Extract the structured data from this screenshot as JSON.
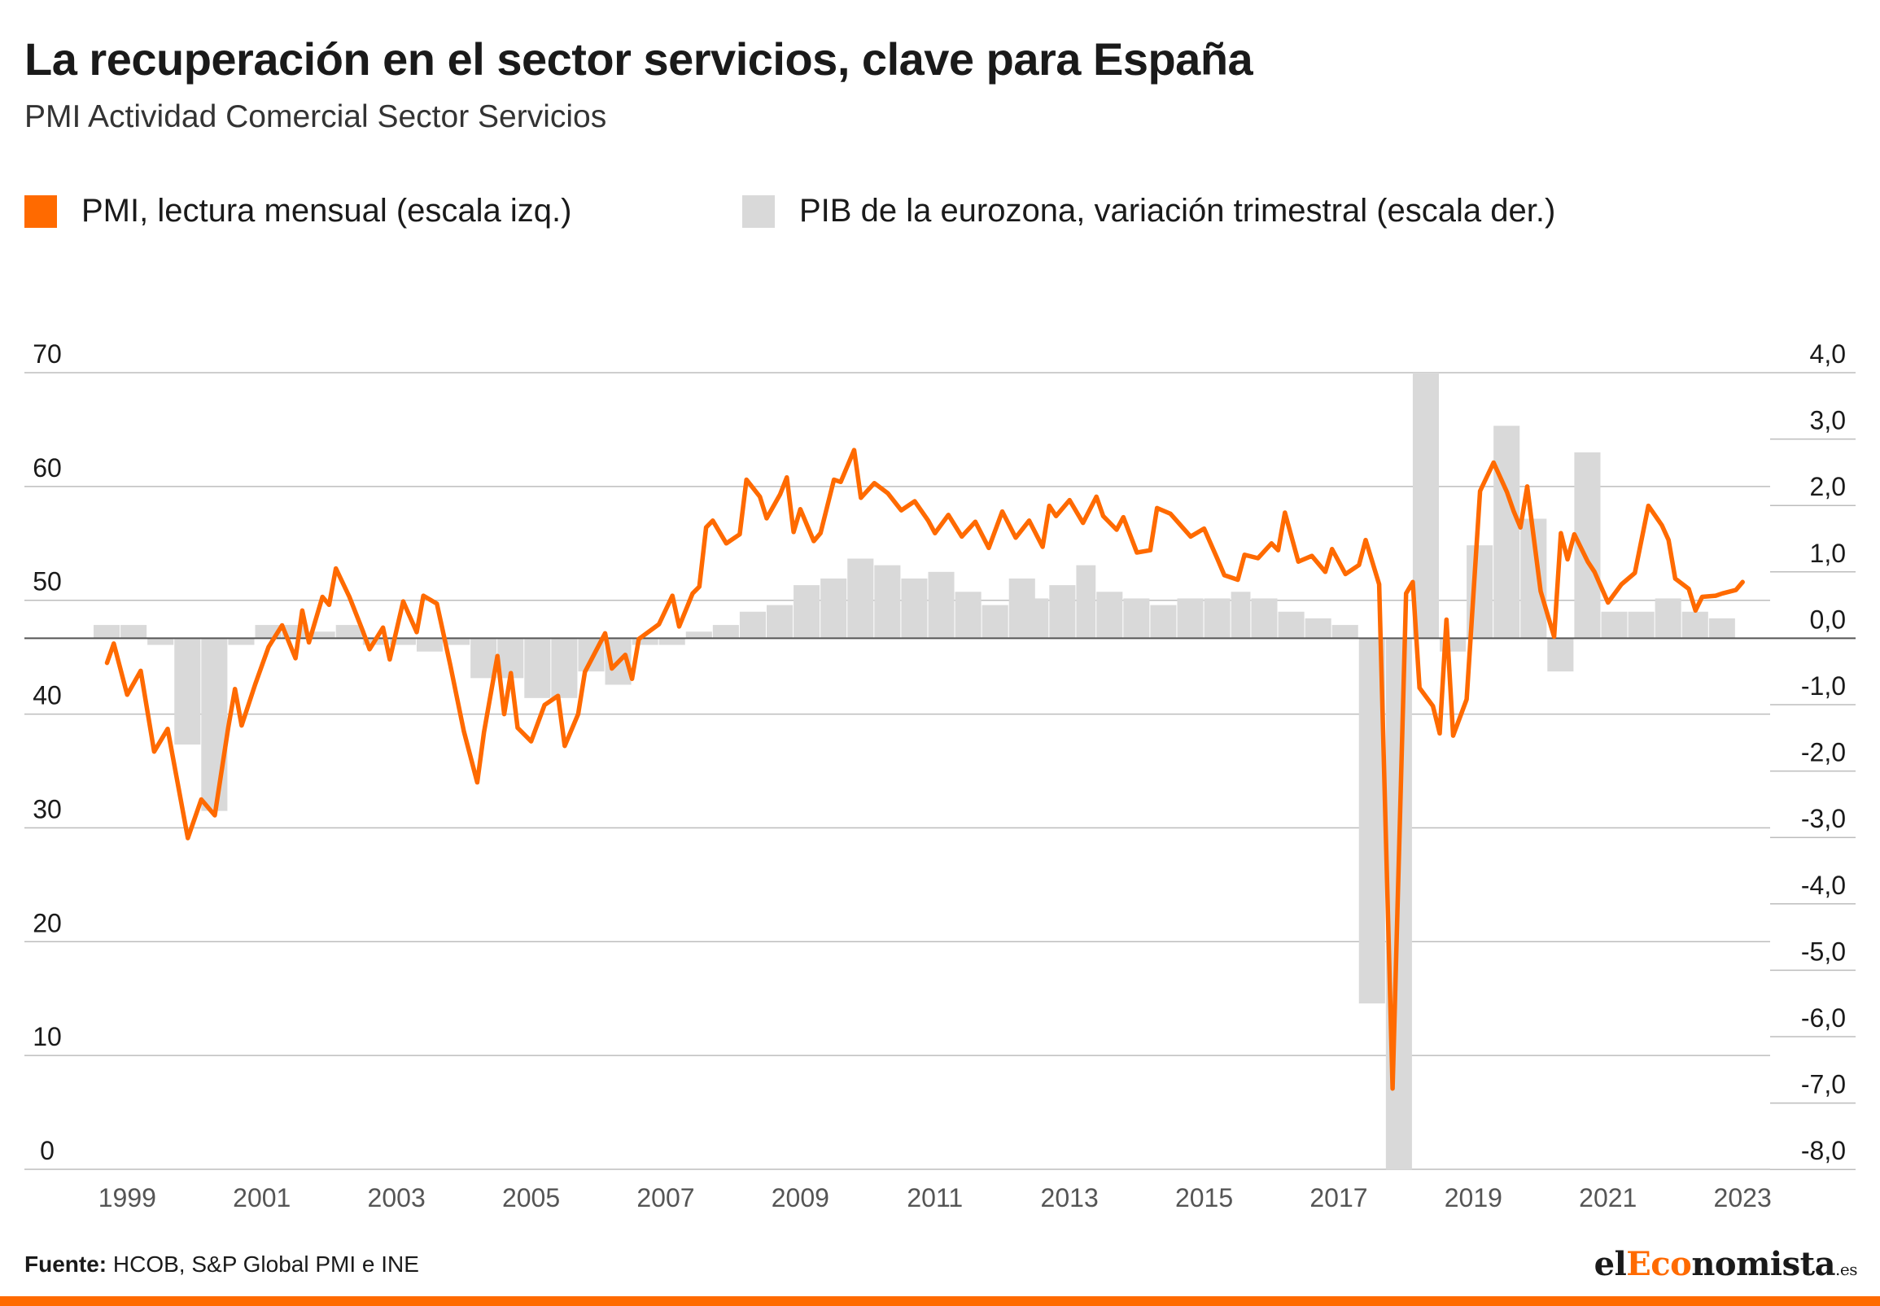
{
  "title": "La recuperación en el sector servicios, clave para España",
  "subtitle": "PMI Actividad Comercial Sector Servicios",
  "legend": [
    {
      "label": "PMI, lectura mensual (escala izq.)",
      "color": "#ff6a00"
    },
    {
      "label": "PIB de la eurozona, variación trimestral (escala der.)",
      "color": "#d9d9d9"
    }
  ],
  "source": {
    "prefix": "Fuente:",
    "text": " HCOB, S&P Global PMI e INE"
  },
  "brand": {
    "part1": "el",
    "part2": "Eco",
    "part3": "nomista",
    "tld": ".es"
  },
  "colors": {
    "pmi": "#ff6a00",
    "gdp": "#d9d9d9",
    "grid": "#bdbdbd",
    "zero": "#555555",
    "accent": "#ff6a00"
  },
  "chart_data": {
    "type": "line",
    "x_tick_labels": [
      "1999",
      "2001",
      "2003",
      "2005",
      "2007",
      "2009",
      "2011",
      "2013",
      "2015",
      "2017",
      "2019",
      "2021",
      "2023"
    ],
    "x_range": [
      1998.0,
      2023.5
    ],
    "y_left": {
      "ticks": [
        "70",
        "60",
        "50",
        "40",
        "30",
        "20",
        "10",
        "0"
      ],
      "range": [
        0,
        70
      ]
    },
    "y_right": {
      "ticks": [
        "4,0",
        "3,0",
        "2,0",
        "1,0",
        "0,0",
        "-1,0",
        "-2,0",
        "-3,0",
        "-4,0",
        "-5,0",
        "-6,0",
        "-7,0",
        "-8,0"
      ],
      "range": [
        -8,
        4
      ]
    },
    "grid": true,
    "legend_position": "top-left",
    "series": [
      {
        "name": "PMI, lectura mensual (escala izq.)",
        "axis": "left",
        "type": "line",
        "points": [
          [
            1998.2,
            44.5
          ],
          [
            1998.3,
            46.2
          ],
          [
            1998.5,
            41.7
          ],
          [
            1998.7,
            43.8
          ],
          [
            1998.9,
            36.7
          ],
          [
            1999.1,
            38.7
          ],
          [
            1999.4,
            29.1
          ],
          [
            1999.6,
            32.5
          ],
          [
            1999.8,
            31.1
          ],
          [
            2000.0,
            38.8
          ],
          [
            2000.1,
            42.2
          ],
          [
            2000.2,
            39.0
          ],
          [
            2000.4,
            42.6
          ],
          [
            2000.6,
            45.9
          ],
          [
            2000.8,
            47.8
          ],
          [
            2001.0,
            44.9
          ],
          [
            2001.1,
            49.1
          ],
          [
            2001.2,
            46.3
          ],
          [
            2001.4,
            50.3
          ],
          [
            2001.5,
            49.6
          ],
          [
            2001.6,
            52.8
          ],
          [
            2001.8,
            50.3
          ],
          [
            2002.0,
            47.3
          ],
          [
            2002.1,
            45.7
          ],
          [
            2002.3,
            47.6
          ],
          [
            2002.4,
            44.8
          ],
          [
            2002.6,
            49.9
          ],
          [
            2002.8,
            47.2
          ],
          [
            2002.9,
            50.4
          ],
          [
            2003.1,
            49.7
          ],
          [
            2003.3,
            44.3
          ],
          [
            2003.5,
            38.5
          ],
          [
            2003.7,
            34.0
          ],
          [
            2003.8,
            38.4
          ],
          [
            2004.0,
            45.1
          ],
          [
            2004.1,
            40.0
          ],
          [
            2004.2,
            43.6
          ],
          [
            2004.3,
            38.8
          ],
          [
            2004.5,
            37.6
          ],
          [
            2004.7,
            40.8
          ],
          [
            2004.9,
            41.6
          ],
          [
            2005.0,
            37.2
          ],
          [
            2005.2,
            40.0
          ],
          [
            2005.3,
            43.7
          ],
          [
            2005.6,
            47.1
          ],
          [
            2005.7,
            44.0
          ],
          [
            2005.9,
            45.2
          ],
          [
            2006.0,
            43.1
          ],
          [
            2006.1,
            46.6
          ],
          [
            2006.4,
            47.9
          ],
          [
            2006.6,
            50.4
          ],
          [
            2006.7,
            47.7
          ],
          [
            2006.9,
            50.6
          ],
          [
            2007.0,
            51.2
          ],
          [
            2007.1,
            56.4
          ],
          [
            2007.2,
            57.0
          ],
          [
            2007.4,
            55.0
          ],
          [
            2007.6,
            55.8
          ],
          [
            2007.7,
            60.6
          ],
          [
            2007.9,
            59.1
          ],
          [
            2008.0,
            57.2
          ],
          [
            2008.2,
            59.3
          ],
          [
            2008.3,
            60.8
          ],
          [
            2008.4,
            56.0
          ],
          [
            2008.5,
            58.0
          ],
          [
            2008.7,
            55.2
          ],
          [
            2008.8,
            55.9
          ],
          [
            2009.0,
            60.6
          ],
          [
            2009.1,
            60.4
          ],
          [
            2009.3,
            63.2
          ],
          [
            2009.4,
            59.0
          ],
          [
            2009.6,
            60.3
          ],
          [
            2009.8,
            59.4
          ],
          [
            2010.0,
            57.9
          ],
          [
            2010.2,
            58.7
          ],
          [
            2010.4,
            57.0
          ],
          [
            2010.5,
            55.9
          ],
          [
            2010.7,
            57.5
          ],
          [
            2010.9,
            55.6
          ],
          [
            2011.1,
            56.9
          ],
          [
            2011.3,
            54.6
          ],
          [
            2011.5,
            57.8
          ],
          [
            2011.7,
            55.5
          ],
          [
            2011.9,
            57.0
          ],
          [
            2012.1,
            54.7
          ],
          [
            2012.2,
            58.3
          ],
          [
            2012.3,
            57.4
          ],
          [
            2012.5,
            58.8
          ],
          [
            2012.7,
            56.8
          ],
          [
            2012.9,
            59.1
          ],
          [
            2013.0,
            57.4
          ],
          [
            2013.2,
            56.2
          ],
          [
            2013.3,
            57.3
          ],
          [
            2013.5,
            54.2
          ],
          [
            2013.7,
            54.4
          ],
          [
            2013.8,
            58.1
          ],
          [
            2014.0,
            57.6
          ],
          [
            2014.3,
            55.6
          ],
          [
            2014.5,
            56.3
          ],
          [
            2014.7,
            53.6
          ],
          [
            2014.8,
            52.2
          ],
          [
            2015.0,
            51.8
          ],
          [
            2015.1,
            54.0
          ],
          [
            2015.3,
            53.7
          ],
          [
            2015.5,
            55.0
          ],
          [
            2015.6,
            54.4
          ],
          [
            2015.7,
            57.7
          ],
          [
            2015.9,
            53.4
          ],
          [
            2016.1,
            53.9
          ],
          [
            2016.3,
            52.5
          ],
          [
            2016.4,
            54.5
          ],
          [
            2016.6,
            52.3
          ],
          [
            2016.8,
            53.1
          ],
          [
            2016.9,
            55.3
          ],
          [
            2017.1,
            51.4
          ],
          [
            2017.3,
            7.1
          ],
          [
            2017.5,
            50.6
          ],
          [
            2017.6,
            51.6
          ],
          [
            2017.7,
            42.3
          ],
          [
            2017.9,
            40.7
          ],
          [
            2018.0,
            38.3
          ],
          [
            2018.1,
            48.3
          ],
          [
            2018.2,
            38.1
          ],
          [
            2018.4,
            41.3
          ],
          [
            2018.6,
            59.6
          ],
          [
            2018.8,
            62.1
          ],
          [
            2019.0,
            59.5
          ],
          [
            2019.1,
            57.8
          ],
          [
            2019.2,
            56.4
          ],
          [
            2019.3,
            60.0
          ],
          [
            2019.5,
            50.8
          ],
          [
            2019.7,
            46.8
          ],
          [
            2019.8,
            55.9
          ],
          [
            2019.9,
            53.6
          ],
          [
            2020.0,
            55.8
          ],
          [
            2020.2,
            53.4
          ],
          [
            2020.3,
            52.5
          ],
          [
            2020.5,
            49.8
          ],
          [
            2020.7,
            51.4
          ],
          [
            2020.9,
            52.4
          ],
          [
            2021.1,
            58.3
          ],
          [
            2021.3,
            56.6
          ],
          [
            2021.4,
            55.3
          ],
          [
            2021.5,
            51.9
          ],
          [
            2021.7,
            51.0
          ],
          [
            2021.8,
            49.1
          ],
          [
            2021.9,
            50.3
          ],
          [
            2022.1,
            50.4
          ],
          [
            2022.2,
            50.6
          ],
          [
            2022.4,
            50.9
          ],
          [
            2022.5,
            51.6
          ]
        ]
      },
      {
        "name": "PIB de la eurozona, variación trimestral (escala der.)",
        "axis": "right",
        "type": "bar",
        "bars": [
          [
            1998.0,
            1998.4,
            0.2
          ],
          [
            1998.4,
            1998.8,
            0.2
          ],
          [
            1998.8,
            1999.2,
            -0.1
          ],
          [
            1999.2,
            1999.6,
            -1.6
          ],
          [
            1999.6,
            2000.0,
            -2.6
          ],
          [
            2000.0,
            2000.4,
            -0.1
          ],
          [
            2000.4,
            2000.8,
            0.2
          ],
          [
            2000.8,
            2001.2,
            0.2
          ],
          [
            2001.2,
            2001.6,
            0.1
          ],
          [
            2001.6,
            2002.0,
            0.2
          ],
          [
            2002.0,
            2002.4,
            -0.1
          ],
          [
            2002.4,
            2002.8,
            -0.1
          ],
          [
            2002.8,
            2003.2,
            -0.2
          ],
          [
            2003.2,
            2003.6,
            -0.1
          ],
          [
            2003.6,
            2004.0,
            -0.6
          ],
          [
            2004.0,
            2004.4,
            -0.6
          ],
          [
            2004.4,
            2004.8,
            -0.9
          ],
          [
            2004.8,
            2005.2,
            -0.9
          ],
          [
            2005.2,
            2005.6,
            -0.5
          ],
          [
            2005.6,
            2006.0,
            -0.7
          ],
          [
            2006.0,
            2006.4,
            -0.1
          ],
          [
            2006.4,
            2006.8,
            -0.1
          ],
          [
            2006.8,
            2007.2,
            0.1
          ],
          [
            2007.2,
            2007.6,
            0.2
          ],
          [
            2007.6,
            2008.0,
            0.4
          ],
          [
            2008.0,
            2008.4,
            0.5
          ],
          [
            2008.4,
            2008.8,
            0.8
          ],
          [
            2008.8,
            2009.2,
            0.9
          ],
          [
            2009.2,
            2009.6,
            1.2
          ],
          [
            2009.6,
            2010.0,
            1.1
          ],
          [
            2010.0,
            2010.4,
            0.9
          ],
          [
            2010.4,
            2010.8,
            1.0
          ],
          [
            2010.8,
            2011.2,
            0.7
          ],
          [
            2011.2,
            2011.6,
            0.5
          ],
          [
            2011.6,
            2012.0,
            0.9
          ],
          [
            2011.8,
            2012.2,
            0.6
          ],
          [
            2012.2,
            2012.6,
            0.8
          ],
          [
            2012.6,
            2012.9,
            1.1
          ],
          [
            2012.9,
            2013.3,
            0.7
          ],
          [
            2013.3,
            2013.7,
            0.6
          ],
          [
            2013.7,
            2014.1,
            0.5
          ],
          [
            2014.1,
            2014.5,
            0.6
          ],
          [
            2014.5,
            2014.9,
            0.6
          ],
          [
            2014.9,
            2015.2,
            0.7
          ],
          [
            2015.2,
            2015.6,
            0.6
          ],
          [
            2015.6,
            2016.0,
            0.4
          ],
          [
            2016.0,
            2016.4,
            0.3
          ],
          [
            2016.4,
            2016.8,
            0.2
          ],
          [
            2016.8,
            2017.2,
            -5.5
          ],
          [
            2017.2,
            2017.6,
            -8.0
          ],
          [
            2017.6,
            2018.0,
            4.0
          ],
          [
            2018.0,
            2018.4,
            -0.2
          ],
          [
            2018.4,
            2018.8,
            1.4
          ],
          [
            2018.8,
            2019.2,
            3.2
          ],
          [
            2019.2,
            2019.6,
            1.8
          ],
          [
            2019.6,
            2020.0,
            -0.5
          ],
          [
            2020.0,
            2020.4,
            2.8
          ],
          [
            2020.4,
            2020.8,
            0.4
          ],
          [
            2020.8,
            2021.2,
            0.4
          ],
          [
            2021.2,
            2021.6,
            0.6
          ],
          [
            2021.6,
            2022.0,
            0.4
          ],
          [
            2022.0,
            2022.4,
            0.3
          ]
        ]
      }
    ]
  }
}
